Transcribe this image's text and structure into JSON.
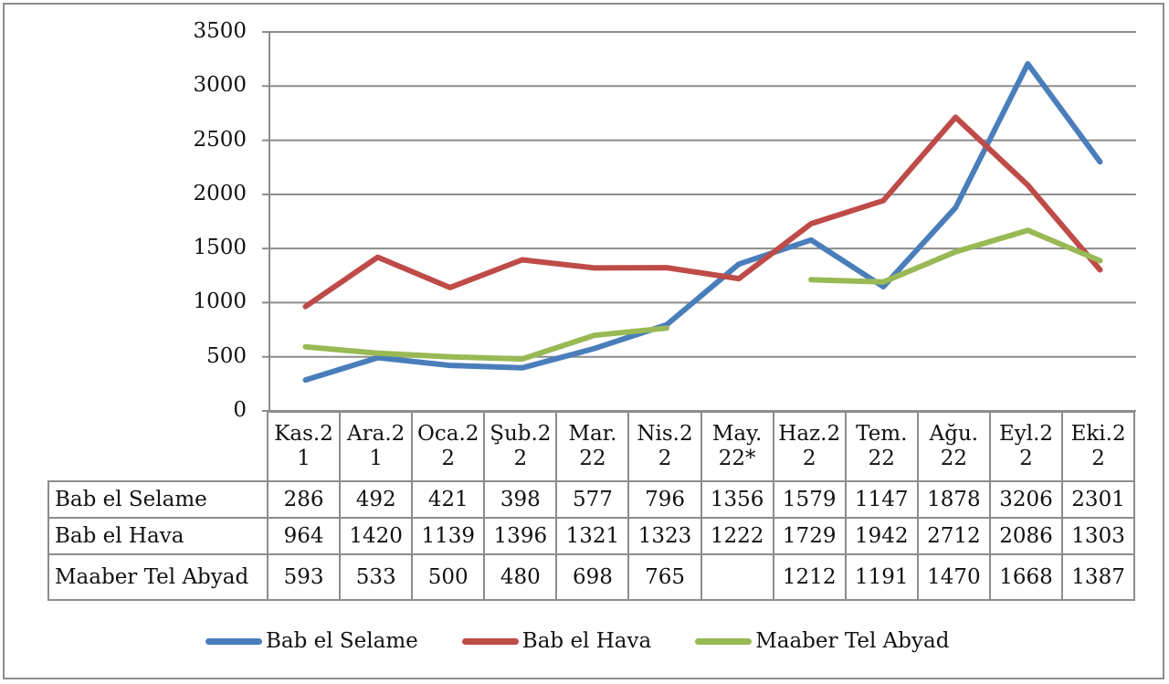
{
  "chart_data": {
    "type": "line",
    "title": "",
    "xlabel": "",
    "ylabel": "",
    "ylim": [
      0,
      3500
    ],
    "yticks": [
      0,
      500,
      1000,
      1500,
      2000,
      2500,
      3000,
      3500
    ],
    "grid": true,
    "legend_position": "bottom",
    "categories": [
      "Kas.21",
      "Ara.21",
      "Oca.22",
      "Şub.22",
      "Mar.22",
      "Nis.22",
      "May.22*",
      "Haz.22",
      "Tem.22",
      "Ağu.22",
      "Eyl.22",
      "Eki.22"
    ],
    "category_labels": [
      [
        "Kas.2",
        "1"
      ],
      [
        "Ara.2",
        "1"
      ],
      [
        "Oca.2",
        "2"
      ],
      [
        "Şub.2",
        "2"
      ],
      [
        "Mar.",
        "22"
      ],
      [
        "Nis.2",
        "2"
      ],
      [
        "May.",
        "22*"
      ],
      [
        "Haz.2",
        "2"
      ],
      [
        "Tem.",
        "22"
      ],
      [
        "Ağu.",
        "22"
      ],
      [
        "Eyl.2",
        "2"
      ],
      [
        "Eki.2",
        "2"
      ]
    ],
    "series": [
      {
        "name": "Bab el Selame",
        "color": "#4a7ebb",
        "values": [
          286,
          492,
          421,
          398,
          577,
          796,
          1356,
          1579,
          1147,
          1878,
          3206,
          2301
        ]
      },
      {
        "name": "Bab el Hava",
        "color": "#be4b48",
        "values": [
          964,
          1420,
          1139,
          1396,
          1321,
          1323,
          1222,
          1729,
          1942,
          2712,
          2086,
          1303
        ]
      },
      {
        "name": "Maaber Tel Abyad",
        "color": "#98b954",
        "values": [
          593,
          533,
          500,
          480,
          698,
          765,
          null,
          1212,
          1191,
          1470,
          1668,
          1387
        ]
      }
    ],
    "data_table": true
  },
  "table": {
    "rows": [
      {
        "label": "Bab el Selame",
        "cells": [
          "286",
          "492",
          "421",
          "398",
          "577",
          "796",
          "1356",
          "1579",
          "1147",
          "1878",
          "3206",
          "2301"
        ]
      },
      {
        "label": "Bab el Hava",
        "cells": [
          "964",
          "1420",
          "1139",
          "1396",
          "1321",
          "1323",
          "1222",
          "1729",
          "1942",
          "2712",
          "2086",
          "1303"
        ]
      },
      {
        "label": "Maaber Tel Abyad",
        "cells": [
          "593",
          "533",
          "500",
          "480",
          "698",
          "765",
          "",
          "1212",
          "1191",
          "1470",
          "1668",
          "1387"
        ]
      }
    ]
  },
  "legend": [
    {
      "label": "Bab el Selame",
      "color": "#4a7ebb"
    },
    {
      "label": "Bab el Hava",
      "color": "#be4b48"
    },
    {
      "label": "Maaber Tel Abyad",
      "color": "#98b954"
    }
  ],
  "colors": {
    "grid": "#8c8c8c",
    "frame": "#8c8c8c"
  }
}
